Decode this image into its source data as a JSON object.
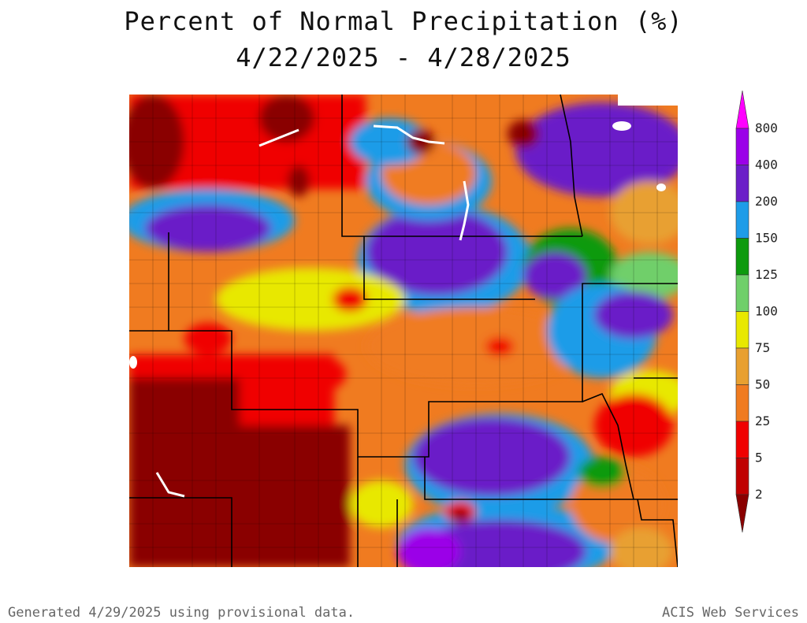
{
  "title": {
    "line1": "Percent of Normal Precipitation (%)",
    "line2": "4/22/2025 - 4/28/2025"
  },
  "legend": {
    "levels": [
      {
        "label": "800",
        "color": "#ff00ff"
      },
      {
        "label": "400",
        "color": "#9b00e8"
      },
      {
        "label": "200",
        "color": "#6b1fc8"
      },
      {
        "label": "150",
        "color": "#1e9ce8"
      },
      {
        "label": "125",
        "color": "#0d9a0d"
      },
      {
        "label": "100",
        "color": "#6fcf6a"
      },
      {
        "label": "75",
        "color": "#e8e800"
      },
      {
        "label": "50",
        "color": "#e8a030"
      },
      {
        "label": "25",
        "color": "#f07b20"
      },
      {
        "label": "5",
        "color": "#f00000"
      },
      {
        "label": "2",
        "color": "#c00000"
      }
    ],
    "below_color": "#8a0000"
  },
  "footer": {
    "left": "Generated 4/29/2025 using provisional data.",
    "right": "ACIS Web Services"
  }
}
